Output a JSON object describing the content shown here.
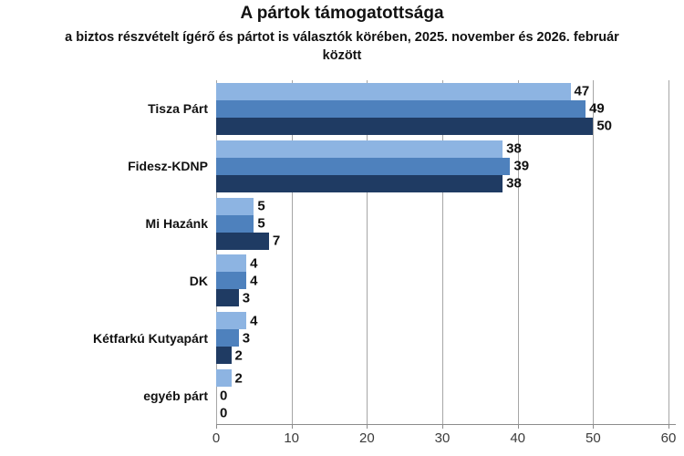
{
  "chart_data": {
    "type": "bar",
    "orientation": "horizontal",
    "title": "A pártok támogatottsága",
    "subtitle_line1": "a biztos részvételt ígérő és pártot is választók körében, 2025. november és 2026. február",
    "subtitle_line2": "között",
    "categories": [
      "Tisza Párt",
      "Fidesz-KDNP",
      "Mi Hazánk",
      "DK",
      "Kétfarkú Kutyapárt",
      "egyéb párt"
    ],
    "series": [
      {
        "name": "series-light-blue",
        "color": "#8DB4E2",
        "values": [
          47,
          38,
          5,
          4,
          4,
          2
        ]
      },
      {
        "name": "series-medium-blue",
        "color": "#4E81BD",
        "values": [
          49,
          39,
          5,
          4,
          3,
          0
        ]
      },
      {
        "name": "series-dark-blue",
        "color": "#1F3B63",
        "values": [
          50,
          38,
          7,
          3,
          2,
          0
        ]
      }
    ],
    "xlabel": "",
    "ylabel": "",
    "xlim": [
      0,
      60
    ],
    "xticks": [
      0,
      10,
      20,
      30,
      40,
      50,
      60
    ],
    "grid": true,
    "legend": "none",
    "value_labels": true,
    "colors": {
      "gridline": "#a6a6a6",
      "axis": "#8c8c8c",
      "text": "#111111",
      "tick_text": "#3b3b3b",
      "background": "#ffffff"
    }
  }
}
